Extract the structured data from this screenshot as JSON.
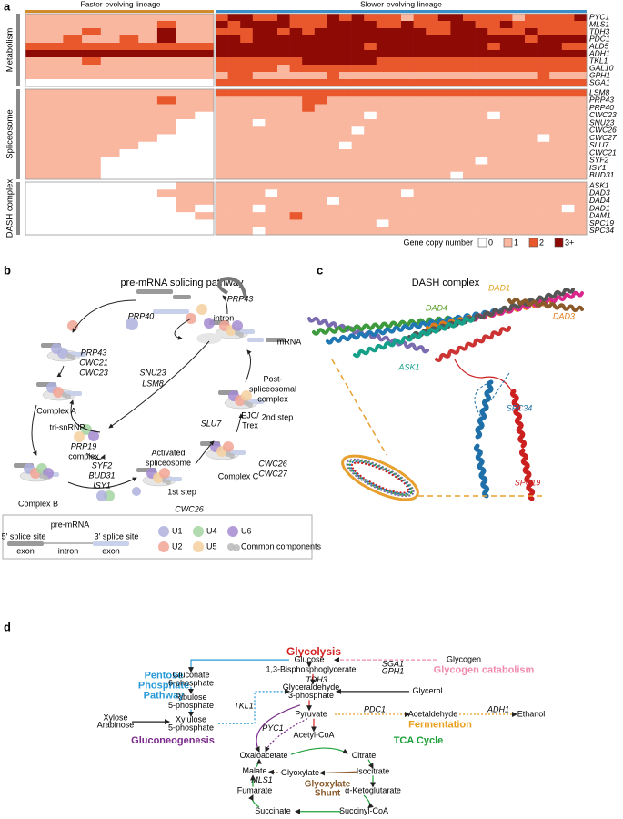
{
  "panel_labels": [
    "a",
    "b",
    "c",
    "d"
  ],
  "heatmap": {
    "lineage_labels": [
      "Faster-evolving lineage",
      "Slower-evolving lineage"
    ],
    "groups": [
      {
        "name": "Metabolism",
        "genes": [
          "PYC1",
          "MLS1",
          "TDH3",
          "PDC1",
          "ALD5",
          "ADH1",
          "TKL1",
          "GAL10",
          "GPH1",
          "SGA1"
        ],
        "rows": [
          "1111111111233223222323222122332222122223",
          "1111111211323333222333322322233223222222",
          "1112111311222332323333333332233322232222",
          "1121121311332333333333333333333333323333",
          "2222222222333333333333233333333323333322",
          "3333333333333333333333333333333333333333",
          "1112111111222222233333322222222222222222",
          "1111111111222221222222222222222222222222",
          "1111111111122111111211111111111111112111",
          "0000000000222222222222222222222222222222"
        ]
      },
      {
        "name": "Spliceosome",
        "genes": [
          "LSM8",
          "PRP43",
          "PRP40",
          "CWC23",
          "SNU23",
          "CWC26",
          "CWC27",
          "SLU7",
          "CWC21",
          "SYF2",
          "ISY1",
          "BUD31"
        ],
        "rows": [
          "1111111111222222222222222222222222222222",
          "1111111211111111122111111111111111111111",
          "1111111111111111121111111111111111111111",
          "1111111110111111111111011111111101111111",
          "1111111100111011111111111111111111111111",
          "1111111100111111111110111111111111111111",
          "1111111000111111111111111111111111110111",
          "1111110000111111111101111111111111111111",
          "1111100000111111111111111111111111111111",
          "1111000000111111111111111111111011111111",
          "1111000000111111111111111111111111111111",
          "1111000000111111111111111111101111111111"
        ]
      },
      {
        "name": "DASH complex",
        "genes": [
          "ASK1",
          "DAD3",
          "DAD4",
          "DAD1",
          "DAM1",
          "SPC19",
          "SPC34"
        ],
        "rows": [
          "0000000011111111111111111111111111111111",
          "0000000111111101111111111011111111111111",
          "0000000011111111111011111111111111111111",
          "0000000010111011111111111111111111111101",
          "0000000001111111211111111111111111111111",
          "0000000000111111111111101111111111111111",
          "0000000000111011111111111111111111111111"
        ]
      }
    ],
    "faster_columns": 10,
    "legend": {
      "title": "Gene copy number",
      "levels": [
        "0",
        "1",
        "2",
        "3+"
      ],
      "colors": [
        "#ffffff",
        "#f9b7a0",
        "#e9582c",
        "#8e0a05"
      ]
    }
  },
  "splicing": {
    "title": "pre-mRNA splicing pathway",
    "labels": [
      "intron",
      "PRP40",
      "PRP43",
      "mRNA",
      "PRP43",
      "CWC21",
      "CWC23",
      "SNU23",
      "LSM8",
      "Post-",
      "spliceosomal",
      "complex",
      "EJC/",
      "Trex",
      "2nd step",
      "Complex A",
      "tri-snRNP",
      "PRP19",
      "complex",
      "SLU7",
      "SYF2",
      "BUD31",
      "ISY1",
      "Activated",
      "spliceosome",
      "Complex C",
      "Complex B",
      "CWC26",
      "CWC27",
      "1st step",
      "CWC26"
    ],
    "legend": {
      "title": "pre-mRNA",
      "sites": [
        "5′ splice site",
        "3′ splice site"
      ],
      "segments": [
        "exon",
        "intron",
        "exon"
      ],
      "components": [
        {
          "name": "U1",
          "color": "#aeb0dd"
        },
        {
          "name": "U4",
          "color": "#a3d3a0"
        },
        {
          "name": "U6",
          "color": "#a48bd0"
        },
        {
          "name": "U2",
          "color": "#f2a595"
        },
        {
          "name": "U5",
          "color": "#f3cf9f"
        },
        {
          "name": "Common components",
          "color": "#b8b8b8"
        }
      ]
    }
  },
  "dash": {
    "title": "DASH complex",
    "labels": [
      "DAD1",
      "DAD4",
      "DAD3",
      "ASK1",
      "SPC34",
      "SPC19"
    ]
  },
  "pathway": {
    "labels": [
      "Glycolysis",
      "Glucose",
      "Glycogen",
      "SGA1",
      "GPH1",
      "Glycogen catabolism",
      "1,3-Bisphosphoglycerate",
      "TDH3",
      "Pentose",
      "Phosphate",
      "Pathway",
      "Gluconate",
      "6-phosphate",
      "Ribulose",
      "5-phosphate",
      "Xylulose",
      "5-phosphate",
      "Xylose",
      "Arabinose",
      "TKL1",
      "Glyceraldehyde",
      "3-phosphate",
      "Glycerol",
      "Pyruvate",
      "PDC1",
      "Acetaldehyde",
      "ADH1",
      "Ethanol",
      "Fermentation",
      "PYC1",
      "Acetyl-CoA",
      "Gluconeogenesis",
      "TCA Cycle",
      "Oxaloacetate",
      "Citrate",
      "Malate",
      "Glyoxylate",
      "Isocitrate",
      "MLS1",
      "Glyoxylate",
      "Shunt",
      "Fumarate",
      "α-Ketoglutarate",
      "Succinate",
      "Succinyl-CoA"
    ]
  }
}
